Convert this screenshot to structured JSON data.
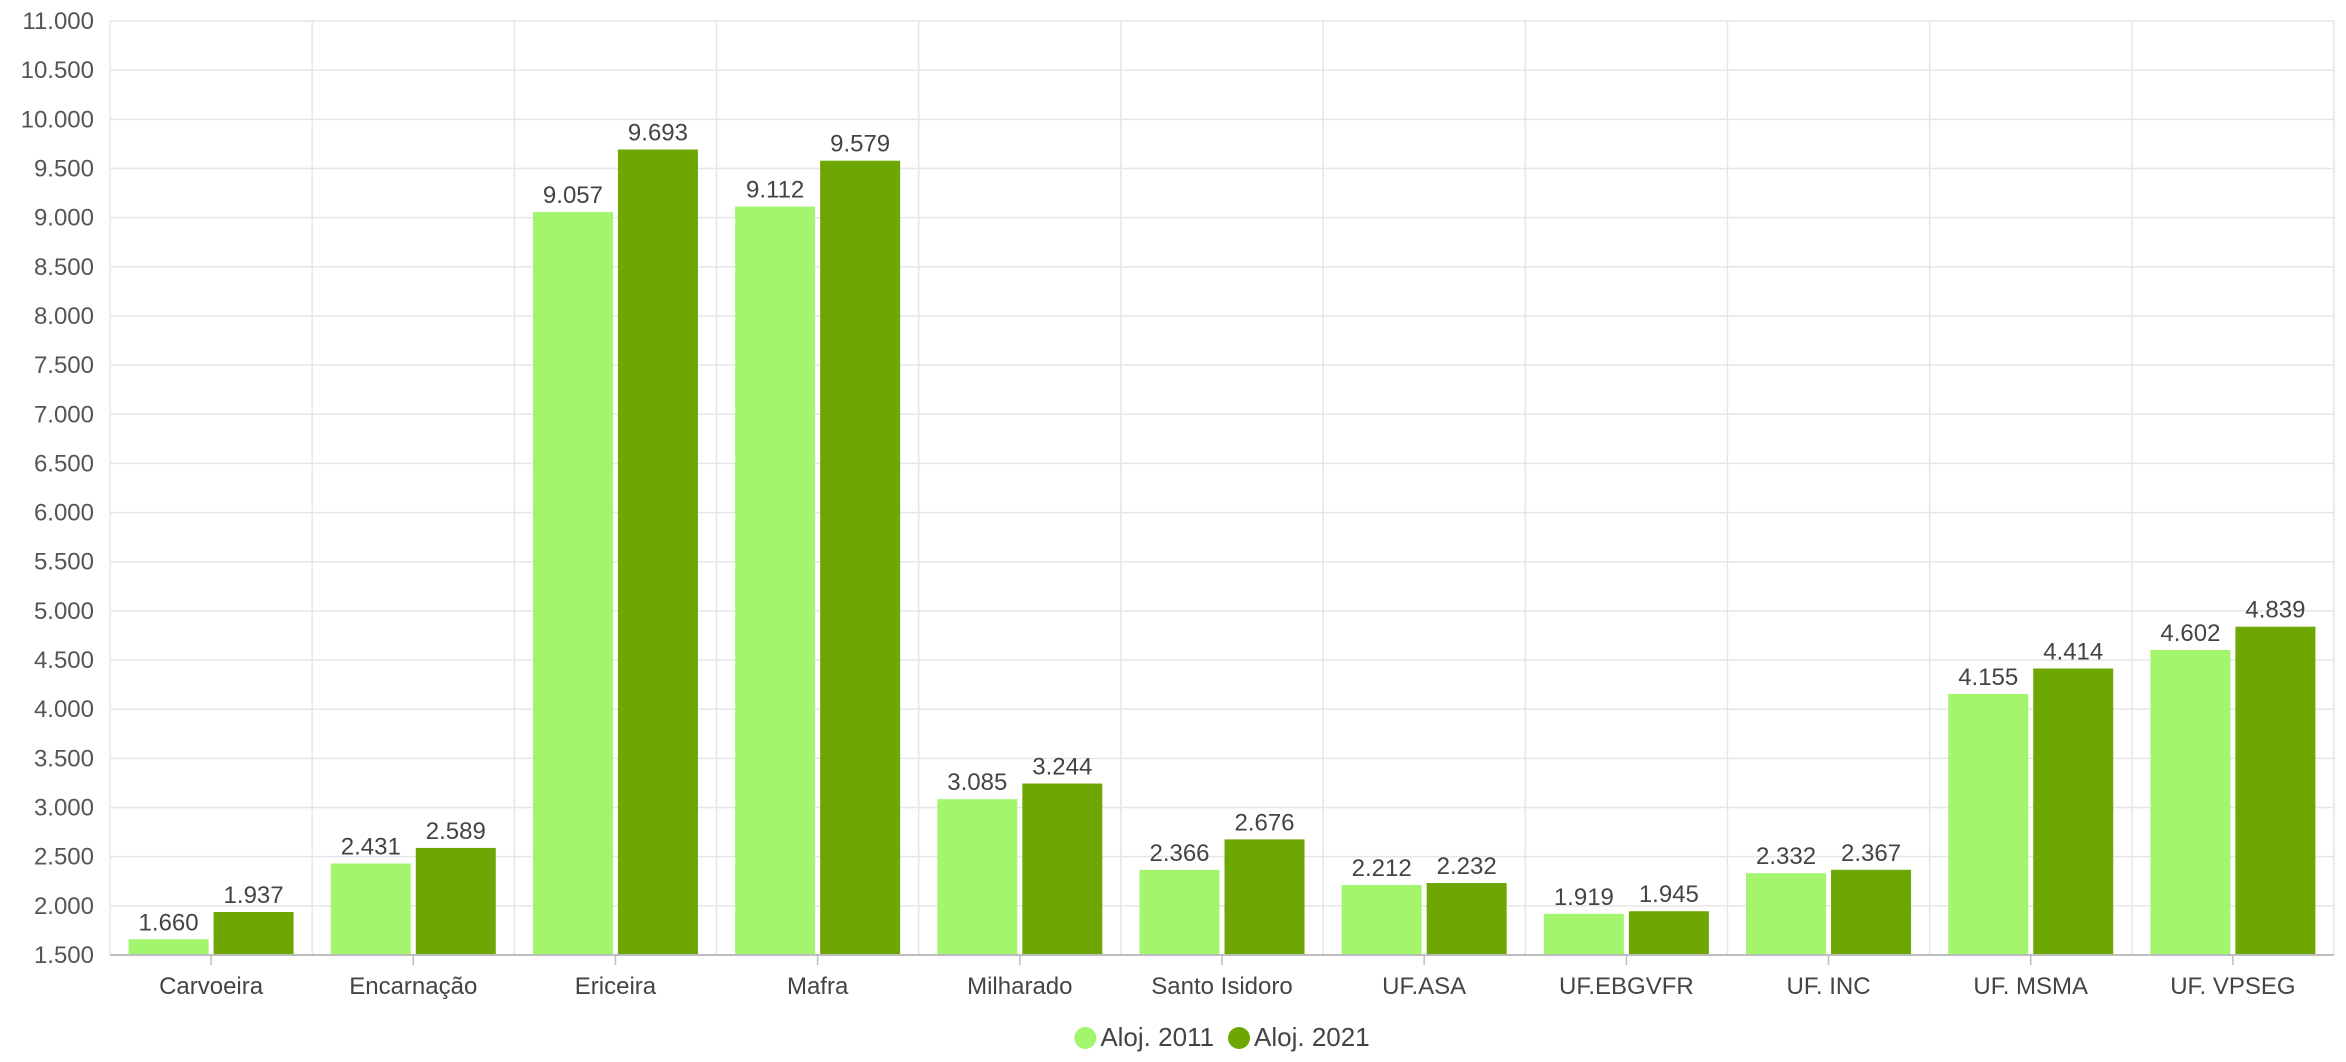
{
  "chart_data": {
    "type": "bar",
    "title": "",
    "xlabel": "",
    "ylabel": "",
    "categories": [
      "Carvoeira",
      "Encarnação",
      "Ericeira",
      "Mafra",
      "Milharado",
      "Santo Isidoro",
      "UF.ASA",
      "UF.EBGVFR",
      "UF. INC",
      "UF. MSMA",
      "UF. VPSEG"
    ],
    "series": [
      {
        "name": "Aloj. 2011",
        "color": "#a3f56d",
        "values": [
          1660,
          2431,
          9057,
          9112,
          3085,
          2366,
          2212,
          1919,
          2332,
          4155,
          4602
        ],
        "labels": [
          "1.660",
          "2.431",
          "9.057",
          "9.112",
          "3.085",
          "2.366",
          "2.212",
          "1.919",
          "2.332",
          "4.155",
          "4.602"
        ]
      },
      {
        "name": "Aloj. 2021",
        "color": "#6ea703",
        "values": [
          1937,
          2589,
          9693,
          9579,
          3244,
          2676,
          2232,
          1945,
          2367,
          4414,
          4839
        ],
        "labels": [
          "1.937",
          "2.589",
          "9.693",
          "9.579",
          "3.244",
          "2.676",
          "2.232",
          "1.945",
          "2.367",
          "4.414",
          "4.839"
        ]
      }
    ],
    "ylim": [
      1500,
      11000
    ],
    "yticks": [
      1500,
      2000,
      2500,
      3000,
      3500,
      4000,
      4500,
      5000,
      5500,
      6000,
      6500,
      7000,
      7500,
      8000,
      8500,
      9000,
      9500,
      10000,
      10500,
      11000
    ],
    "ytick_labels": [
      "1.500",
      "2.000",
      "2.500",
      "3.000",
      "3.500",
      "4.000",
      "4.500",
      "5.000",
      "5.500",
      "6.000",
      "6.500",
      "7.000",
      "7.500",
      "8.000",
      "8.500",
      "9.000",
      "9.500",
      "10.000",
      "10.500",
      "11.000"
    ],
    "grid": true,
    "legend": "bottom-center"
  }
}
